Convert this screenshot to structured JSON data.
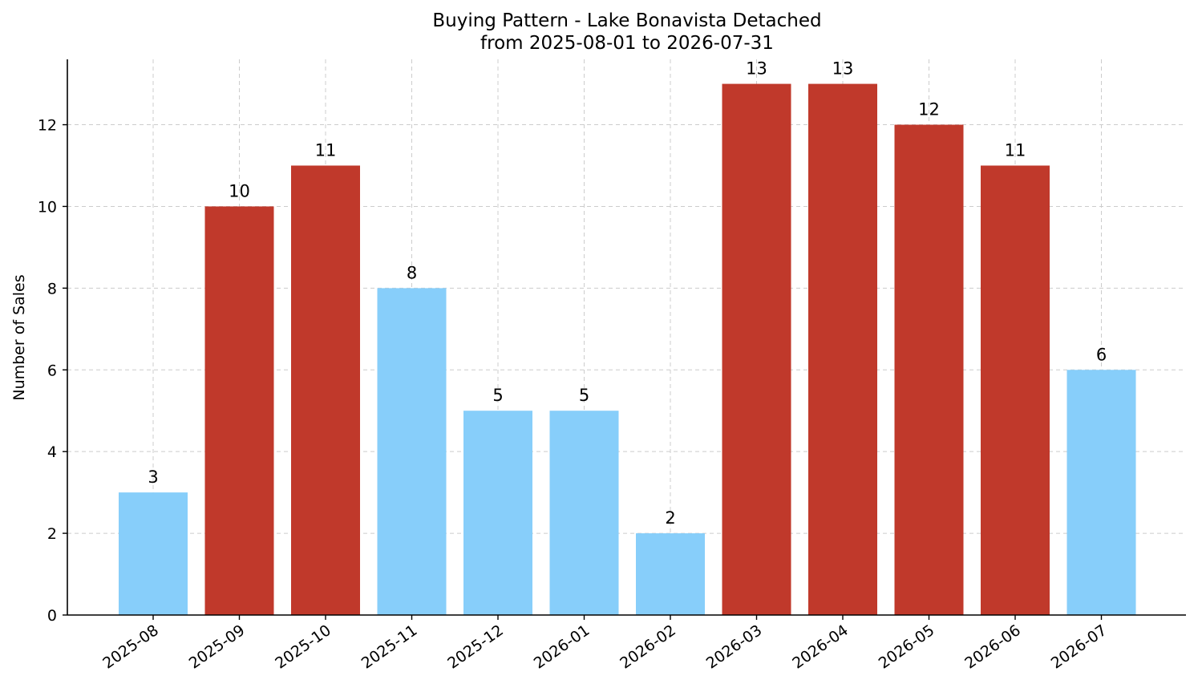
{
  "chart_data": {
    "type": "bar",
    "title": "Buying Pattern - Lake Bonavista Detached",
    "subtitle": "from 2025-08-01 to 2026-07-31",
    "xlabel": "",
    "ylabel": "Number of Sales",
    "ylim": [
      0,
      13.6
    ],
    "yticks": [
      0,
      2,
      4,
      6,
      8,
      10,
      12
    ],
    "grid": true,
    "categories": [
      "2025-08",
      "2025-09",
      "2025-10",
      "2025-11",
      "2025-12",
      "2026-01",
      "2026-02",
      "2026-03",
      "2026-04",
      "2026-05",
      "2026-06",
      "2026-07"
    ],
    "values": [
      3,
      10,
      11,
      8,
      5,
      5,
      2,
      13,
      13,
      12,
      11,
      6
    ],
    "highlight": [
      false,
      true,
      true,
      false,
      false,
      false,
      false,
      true,
      true,
      true,
      true,
      false
    ],
    "colors": {
      "default": "#87CEFA",
      "highlight": "#C0392B"
    }
  }
}
